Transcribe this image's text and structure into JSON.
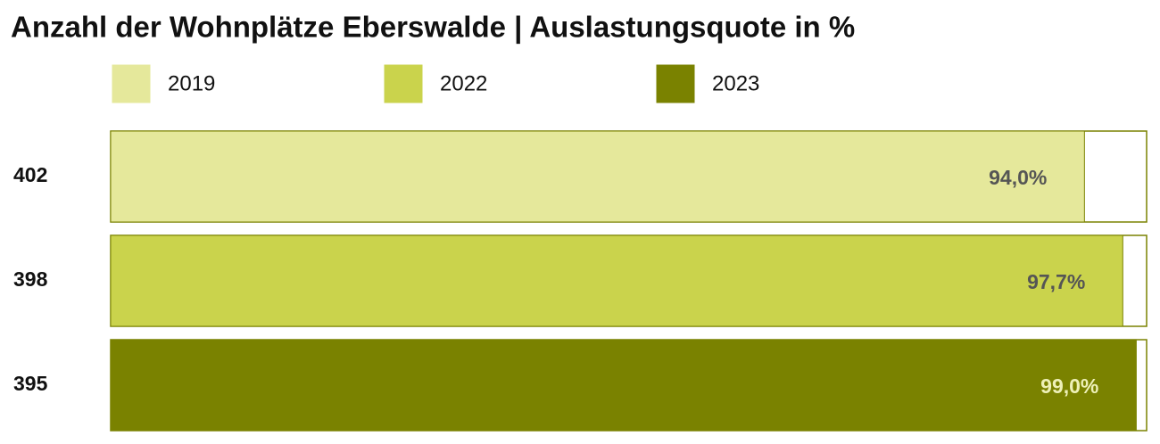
{
  "chart_data": {
    "type": "hbar",
    "title": "Anzahl der Wohnplätze Eberswalde | Auslastungsquote in %",
    "categories": [
      "402",
      "398",
      "395"
    ],
    "xlim": [
      0,
      100
    ],
    "series": [
      {
        "name": "2019",
        "color": "#e5e89b",
        "label_color": "#555555",
        "values": [
          94.0,
          null,
          null
        ],
        "value_labels": [
          "94,0%",
          null,
          null
        ]
      },
      {
        "name": "2022",
        "color": "#cad34c",
        "label_color": "#555555",
        "values": [
          null,
          97.7,
          null
        ],
        "value_labels": [
          null,
          "97,7%",
          null
        ]
      },
      {
        "name": "2023",
        "color": "#7a8200",
        "label_color": "#eef0b8",
        "values": [
          null,
          null,
          99.0
        ],
        "value_labels": [
          null,
          null,
          "99,0%"
        ]
      }
    ]
  }
}
